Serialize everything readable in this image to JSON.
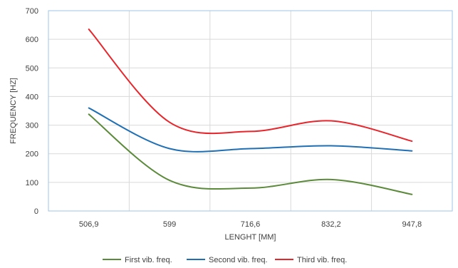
{
  "chart_data": {
    "type": "line",
    "title": "",
    "xlabel": "LENGHT [MM]",
    "ylabel": "FREQUENCY [HZ]",
    "categories": [
      "506,9",
      "599",
      "716,6",
      "832,2",
      "947,8"
    ],
    "x_grid_labels_shown": [
      "506,9",
      "599",
      "716,6",
      "832,2",
      "947,8"
    ],
    "ylim": [
      0,
      700
    ],
    "yticks": [
      0,
      100,
      200,
      300,
      400,
      500,
      600,
      700
    ],
    "grid": true,
    "legend_position": "bottom",
    "smooth": true,
    "series": [
      {
        "name": "First vib. freq.",
        "color": "#5b8a3a",
        "values": [
          338,
          107,
          80,
          110,
          58
        ]
      },
      {
        "name": "Second vib. freq.",
        "color": "#1f6fb5",
        "values": [
          360,
          218,
          218,
          228,
          210
        ]
      },
      {
        "name": "Third vib. freq.",
        "color": "#e8252b",
        "values": [
          635,
          310,
          278,
          315,
          244
        ]
      }
    ]
  }
}
